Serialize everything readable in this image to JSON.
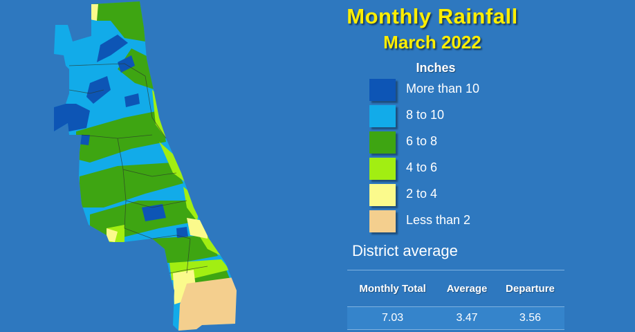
{
  "title": "Monthly Rainfall",
  "subtitle": "March 2022",
  "legend": {
    "title": "Inches",
    "items": [
      {
        "label": "More than 10",
        "color": "#0d55b5"
      },
      {
        "label": "8 to 10",
        "color": "#12abe9"
      },
      {
        "label": "6 to 8",
        "color": "#3ea512"
      },
      {
        "label": "4 to 6",
        "color": "#a2ee12"
      },
      {
        "label": "2 to 4",
        "color": "#fbfa8c"
      },
      {
        "label": "Less than 2",
        "color": "#f4cf8e"
      }
    ]
  },
  "district": {
    "title": "District average",
    "headers": [
      "Monthly Total",
      "Average",
      "Departure"
    ],
    "values": [
      "7.03",
      "3.47",
      "3.56"
    ]
  },
  "map": {
    "background_color": "#2e78bf",
    "region": "district rainfall map"
  }
}
